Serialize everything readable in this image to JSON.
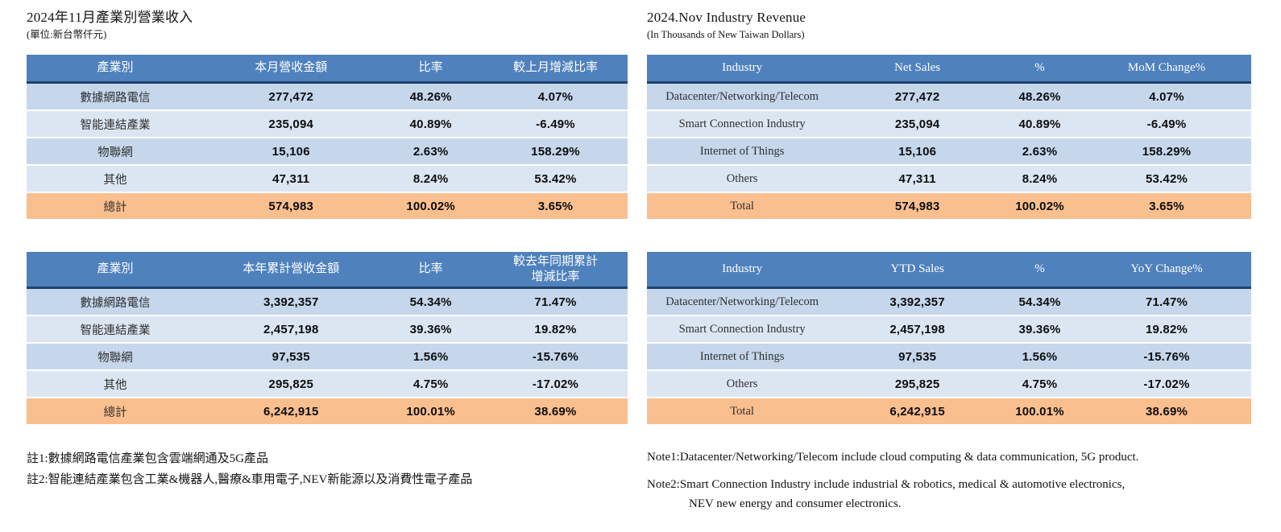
{
  "colors": {
    "header_bg": "#4f81bd",
    "header_text": "#ffffff",
    "header_border": "#1f4370",
    "row_odd": "#c6d7ec",
    "row_even": "#dce6f3",
    "total_bg": "#fabf8f"
  },
  "left": {
    "title": "2024年11月產業別營業收入",
    "subtitle": "(單位:新台幣仟元)",
    "monthly": {
      "headers": [
        "產業別",
        "本月營收金額",
        "比率",
        "較上月增減比率"
      ],
      "rows": [
        [
          "數據網路電信",
          "277,472",
          "48.26%",
          "4.07%"
        ],
        [
          "智能連結產業",
          "235,094",
          "40.89%",
          "-6.49%"
        ],
        [
          "物聯網",
          "15,106",
          "2.63%",
          "158.29%"
        ],
        [
          "其他",
          "47,311",
          "8.24%",
          "53.42%"
        ]
      ],
      "total": [
        "總計",
        "574,983",
        "100.02%",
        "3.65%"
      ]
    },
    "ytd": {
      "headers": [
        "產業別",
        "本年累計營收金額",
        "比率",
        "較去年同期累計\n增減比率"
      ],
      "rows": [
        [
          "數據網路電信",
          "3,392,357",
          "54.34%",
          "71.47%"
        ],
        [
          "智能連結產業",
          "2,457,198",
          "39.36%",
          "19.82%"
        ],
        [
          "物聯網",
          "97,535",
          "1.56%",
          "-15.76%"
        ],
        [
          "其他",
          "295,825",
          "4.75%",
          "-17.02%"
        ]
      ],
      "total": [
        "總計",
        "6,242,915",
        "100.01%",
        "38.69%"
      ]
    },
    "notes": {
      "note1": "註1:數據網路電信產業包含雲端網通及5G產品",
      "note2": "註2:智能連結產業包含工業&機器人,醫療&車用電子,NEV新能源以及消費性電子產品"
    }
  },
  "right": {
    "title": "2024.Nov Industry Revenue",
    "subtitle": "(In Thousands of New Taiwan Dollars)",
    "monthly": {
      "headers": [
        "Industry",
        "Net Sales",
        "%",
        "MoM Change%"
      ],
      "rows": [
        [
          "Datacenter/Networking/Telecom",
          "277,472",
          "48.26%",
          "4.07%"
        ],
        [
          "Smart Connection Industry",
          "235,094",
          "40.89%",
          "-6.49%"
        ],
        [
          "Internet of Things",
          "15,106",
          "2.63%",
          "158.29%"
        ],
        [
          "Others",
          "47,311",
          "8.24%",
          "53.42%"
        ]
      ],
      "total": [
        "Total",
        "574,983",
        "100.02%",
        "3.65%"
      ]
    },
    "ytd": {
      "headers": [
        "Industry",
        "YTD Sales",
        "%",
        "YoY Change%"
      ],
      "rows": [
        [
          "Datacenter/Networking/Telecom",
          "3,392,357",
          "54.34%",
          "71.47%"
        ],
        [
          "Smart Connection Industry",
          "2,457,198",
          "39.36%",
          "19.82%"
        ],
        [
          "Internet of Things",
          "97,535",
          "1.56%",
          "-15.76%"
        ],
        [
          "Others",
          "295,825",
          "4.75%",
          "-17.02%"
        ]
      ],
      "total": [
        "Total",
        "6,242,915",
        "100.01%",
        "38.69%"
      ]
    },
    "notes": {
      "note1": "Note1:Datacenter/Networking/Telecom include cloud computing & data communication, 5G product.",
      "note2_line1": "Note2:Smart Connection Industry include industrial & robotics, medical & automotive electronics,",
      "note2_line2": "NEV new energy and consumer electronics."
    }
  }
}
